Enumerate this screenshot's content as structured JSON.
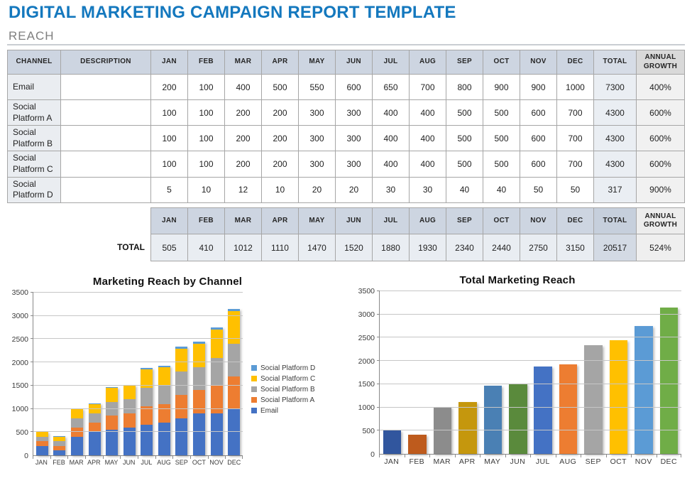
{
  "page": {
    "title": "DIGITAL MARKETING CAMPAIGN REPORT TEMPLATE",
    "section": "REACH"
  },
  "colors": {
    "title_blue": "#1478BE",
    "table_header_bg": "#CDD5E1",
    "email_blue": "#4472C4",
    "platform_a_orange": "#ED7D31",
    "platform_b_gray": "#A5A5A5",
    "platform_c_yellow": "#FFC000",
    "platform_d_lightblue": "#5B9BD5"
  },
  "reach_table": {
    "headers": [
      "CHANNEL",
      "DESCRIPTION",
      "JAN",
      "FEB",
      "MAR",
      "APR",
      "MAY",
      "JUN",
      "JUL",
      "AUG",
      "SEP",
      "OCT",
      "NOV",
      "DEC",
      "TOTAL",
      "ANNUAL GROWTH"
    ],
    "rows": [
      {
        "channel": "Email",
        "description": "",
        "values": [
          200,
          100,
          400,
          500,
          550,
          600,
          650,
          700,
          800,
          900,
          900,
          1000
        ],
        "total": 7300,
        "growth": "400%"
      },
      {
        "channel": "Social Platform A",
        "description": "",
        "values": [
          100,
          100,
          200,
          200,
          300,
          300,
          400,
          400,
          500,
          500,
          600,
          700
        ],
        "total": 4300,
        "growth": "600%"
      },
      {
        "channel": "Social Platform B",
        "description": "",
        "values": [
          100,
          100,
          200,
          200,
          300,
          300,
          400,
          400,
          500,
          500,
          600,
          700
        ],
        "total": 4300,
        "growth": "600%"
      },
      {
        "channel": "Social Platform C",
        "description": "",
        "values": [
          100,
          100,
          200,
          200,
          300,
          300,
          400,
          400,
          500,
          500,
          600,
          700
        ],
        "total": 4300,
        "growth": "600%"
      },
      {
        "channel": "Social Platform D",
        "description": "",
        "values": [
          5,
          10,
          12,
          10,
          20,
          20,
          30,
          30,
          40,
          40,
          50,
          50
        ],
        "total": 317,
        "growth": "900%"
      }
    ]
  },
  "total_table": {
    "label": "TOTAL",
    "headers": [
      "JAN",
      "FEB",
      "MAR",
      "APR",
      "MAY",
      "JUN",
      "JUL",
      "AUG",
      "SEP",
      "OCT",
      "NOV",
      "DEC",
      "TOTAL",
      "ANNUAL GROWTH"
    ],
    "values": [
      505,
      410,
      1012,
      1110,
      1470,
      1520,
      1880,
      1930,
      2340,
      2440,
      2750,
      3150
    ],
    "total": 20517,
    "growth": "524%"
  },
  "chart_data": [
    {
      "type": "bar",
      "stacked": true,
      "title": "Marketing Reach by Channel",
      "categories": [
        "JAN",
        "FEB",
        "MAR",
        "APR",
        "MAY",
        "JUN",
        "JUL",
        "AUG",
        "SEP",
        "OCT",
        "NOV",
        "DEC"
      ],
      "series": [
        {
          "name": "Email",
          "color": "#4472C4",
          "values": [
            200,
            100,
            400,
            500,
            550,
            600,
            650,
            700,
            800,
            900,
            900,
            1000
          ]
        },
        {
          "name": "Social Platform A",
          "color": "#ED7D31",
          "values": [
            100,
            100,
            200,
            200,
            300,
            300,
            400,
            400,
            500,
            500,
            600,
            700
          ]
        },
        {
          "name": "Social Platform B",
          "color": "#A5A5A5",
          "values": [
            100,
            100,
            200,
            200,
            300,
            300,
            400,
            400,
            500,
            500,
            600,
            700
          ]
        },
        {
          "name": "Social Platform C",
          "color": "#FFC000",
          "values": [
            100,
            100,
            200,
            200,
            300,
            300,
            400,
            400,
            500,
            500,
            600,
            700
          ]
        },
        {
          "name": "Social Platform D",
          "color": "#5B9BD5",
          "values": [
            5,
            10,
            12,
            10,
            20,
            20,
            30,
            30,
            40,
            40,
            50,
            50
          ]
        }
      ],
      "ylim": [
        0,
        3500
      ],
      "ystep": 500,
      "grid": true,
      "legend_position": "right"
    },
    {
      "type": "bar",
      "stacked": false,
      "title": "Total Marketing Reach",
      "categories": [
        "JAN",
        "FEB",
        "MAR",
        "APR",
        "MAY",
        "JUN",
        "JUL",
        "AUG",
        "SEP",
        "OCT",
        "NOV",
        "DEC"
      ],
      "values": [
        505,
        410,
        1012,
        1110,
        1470,
        1520,
        1880,
        1930,
        2340,
        2440,
        2750,
        3150
      ],
      "bar_colors": [
        "#31569E",
        "#BE5B1D",
        "#8C8C8C",
        "#C5970D",
        "#4A80B4",
        "#5A8A3C",
        "#4472C4",
        "#ED7D31",
        "#A5A5A5",
        "#FFC000",
        "#5B9BD5",
        "#70AD47"
      ],
      "ylim": [
        0,
        3500
      ],
      "ystep": 500,
      "grid": true,
      "legend_position": "none"
    }
  ]
}
